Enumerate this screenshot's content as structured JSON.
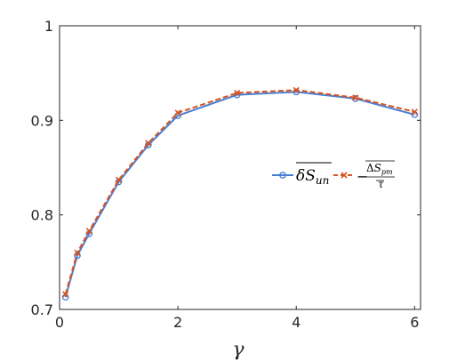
{
  "chart_data": {
    "type": "line",
    "xlabel": "γ",
    "ylabel": "",
    "xlim": [
      0,
      6.1
    ],
    "ylim": [
      0.7,
      1.0
    ],
    "xticks": [
      "0",
      "2",
      "4",
      "6"
    ],
    "yticks": [
      "0.7",
      "0.8",
      "0.9",
      "1"
    ],
    "grid": false,
    "legend_placement": "right",
    "x": [
      0.1,
      0.3,
      0.5,
      1,
      1.5,
      2,
      3,
      4,
      5,
      6
    ],
    "series": [
      {
        "name": "δS_un",
        "color": "#4a7fd4",
        "marker": "circle",
        "line_style": "solid",
        "values": [
          0.713,
          0.757,
          0.78,
          0.835,
          0.874,
          0.905,
          0.927,
          0.93,
          0.923,
          0.906
        ]
      },
      {
        "name": "−ΔS_pm / τ",
        "color": "#d9531e",
        "marker": "x",
        "line_style": "dashed",
        "values": [
          0.716,
          0.76,
          0.783,
          0.837,
          0.876,
          0.908,
          0.929,
          0.932,
          0.924,
          0.909
        ]
      }
    ]
  }
}
